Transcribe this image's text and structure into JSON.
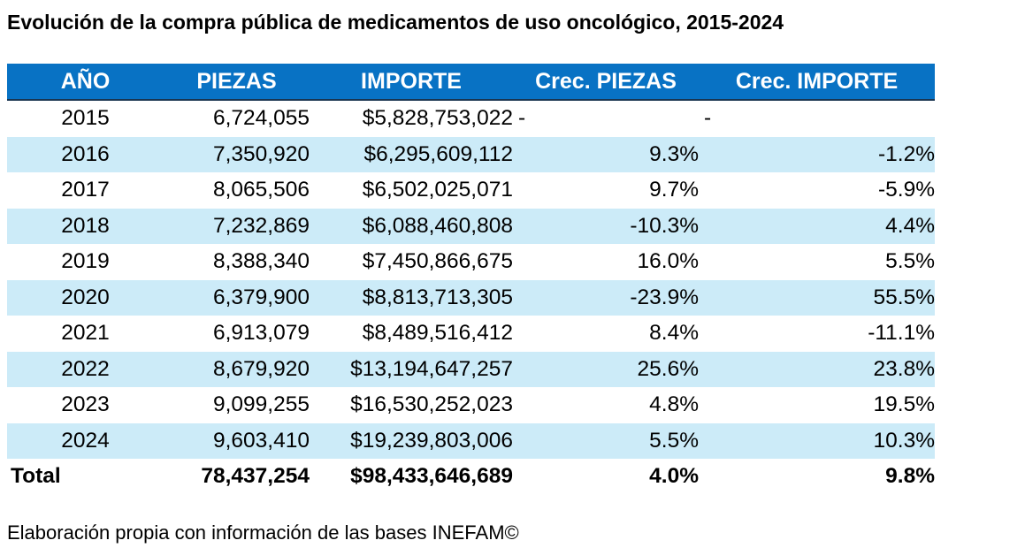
{
  "title": "Evolución de la compra pública de medicamentos de uso oncológico, 2015-2024",
  "colors": {
    "header_bg": "#0872C4",
    "header_text": "#FFFFFF",
    "alt_row_bg": "#CCEBF8"
  },
  "chart_data": {
    "type": "table",
    "title": "Evolución de la compra pública de medicamentos de uso oncológico, 2015-2024",
    "columns": [
      "AÑO",
      "PIEZAS",
      "IMPORTE",
      "Crec. PIEZAS",
      "Crec. IMPORTE"
    ],
    "rows": [
      [
        "2015",
        "6,724,055",
        "$5,828,753,022",
        "-",
        "-"
      ],
      [
        "2016",
        "7,350,920",
        "$6,295,609,112",
        "9.3%",
        "-1.2%"
      ],
      [
        "2017",
        "8,065,506",
        "$6,502,025,071",
        "9.7%",
        "-5.9%"
      ],
      [
        "2018",
        "7,232,869",
        "$6,088,460,808",
        "-10.3%",
        "4.4%"
      ],
      [
        "2019",
        "8,388,340",
        "$7,450,866,675",
        "16.0%",
        "5.5%"
      ],
      [
        "2020",
        "6,379,900",
        "$8,813,713,305",
        "-23.9%",
        "55.5%"
      ],
      [
        "2021",
        "6,913,079",
        "$8,489,516,412",
        "8.4%",
        "-11.1%"
      ],
      [
        "2022",
        "8,679,920",
        "$13,194,647,257",
        "25.6%",
        "23.8%"
      ],
      [
        "2023",
        "9,099,255",
        "$16,530,252,023",
        "4.8%",
        "19.5%"
      ],
      [
        "2024",
        "9,603,410",
        "$19,239,803,006",
        "5.5%",
        "10.3%"
      ]
    ],
    "total": [
      "Total",
      "78,437,254",
      "$98,433,646,689",
      "4.0%",
      "9.8%"
    ]
  },
  "footer": "Elaboración propia con información de las bases INEFAM©"
}
